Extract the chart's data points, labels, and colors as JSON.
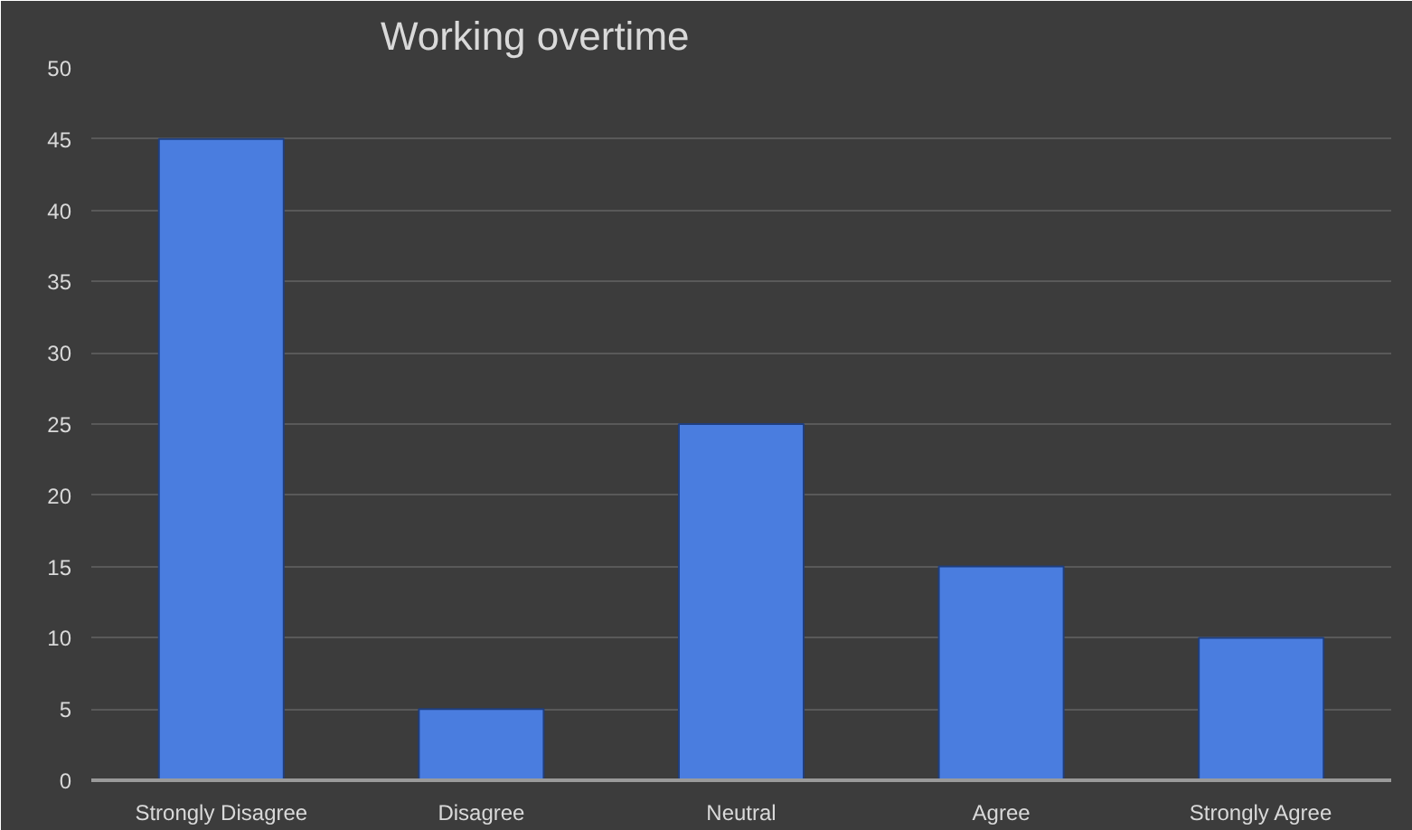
{
  "chart_data": {
    "type": "bar",
    "title": "Working overtime",
    "categories": [
      "Strongly Disagree",
      "Disagree",
      "Neutral",
      "Agree",
      "Strongly Agree"
    ],
    "values": [
      45,
      5,
      25,
      15,
      10
    ],
    "color": "#4a7ddf",
    "ylim": [
      0,
      50
    ],
    "yticks": [
      0,
      5,
      10,
      15,
      20,
      25,
      30,
      35,
      40,
      45,
      50
    ],
    "grid": "y"
  }
}
